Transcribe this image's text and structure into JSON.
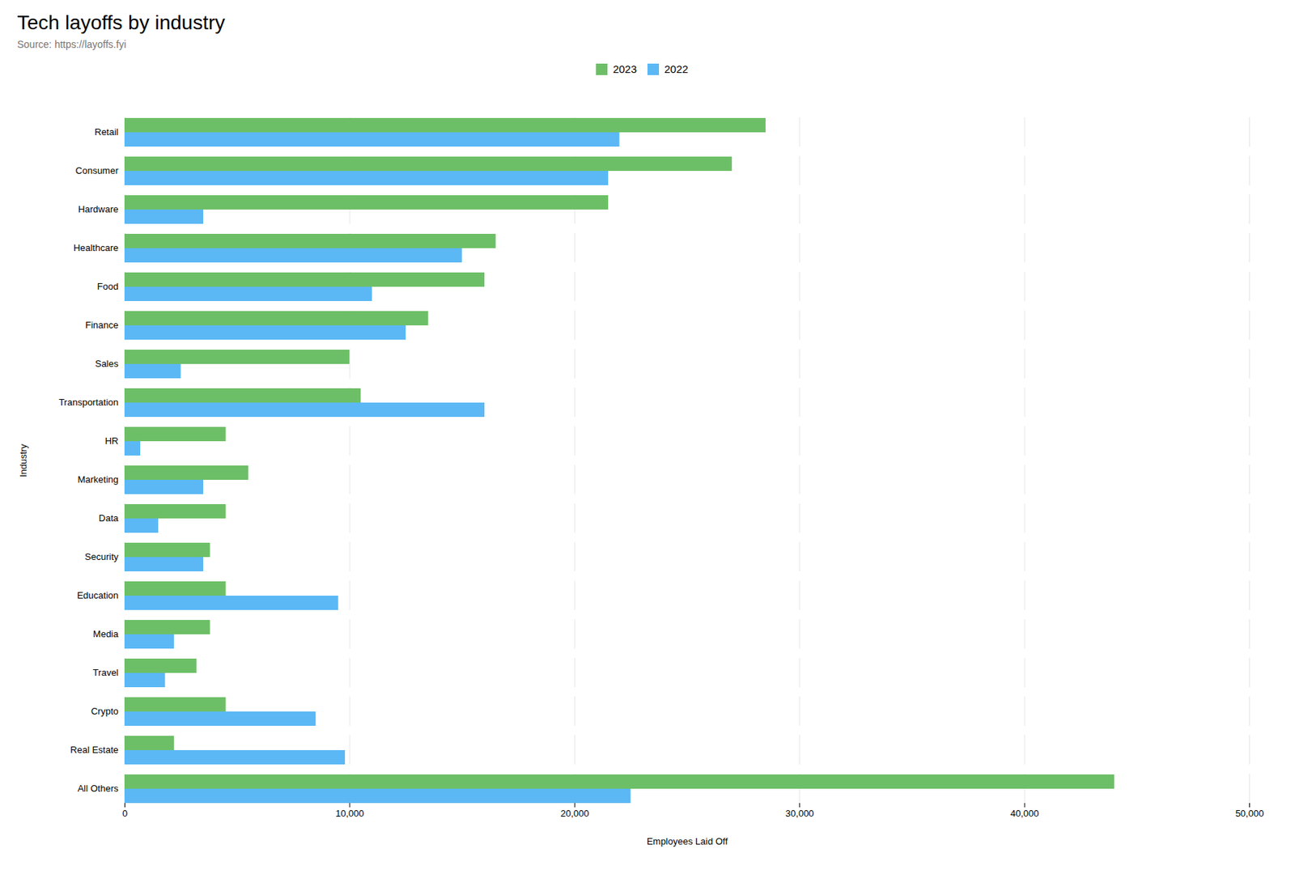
{
  "chart_data": {
    "type": "bar",
    "orientation": "horizontal",
    "title": "Tech layoffs by industry",
    "subtitle": "Source: https://layoffs.fyi",
    "xlabel": "Employees Laid Off",
    "ylabel": "Industry",
    "categories": [
      "Retail",
      "Consumer",
      "Hardware",
      "Healthcare",
      "Food",
      "Finance",
      "Sales",
      "Transportation",
      "HR",
      "Marketing",
      "Data",
      "Security",
      "Education",
      "Media",
      "Travel",
      "Crypto",
      "Real Estate",
      "All Others"
    ],
    "series": [
      {
        "name": "2023",
        "color": "#6dbf67",
        "values": [
          28500,
          27000,
          21500,
          16500,
          16000,
          13500,
          10000,
          10500,
          4500,
          5500,
          4500,
          3800,
          4500,
          3800,
          3200,
          4500,
          2200,
          44000
        ]
      },
      {
        "name": "2022",
        "color": "#5bb8f5",
        "values": [
          22000,
          21500,
          3500,
          15000,
          11000,
          12500,
          2500,
          16000,
          700,
          3500,
          1500,
          3500,
          9500,
          2200,
          1800,
          8500,
          9800,
          22500
        ]
      }
    ],
    "xlim": [
      0,
      50000
    ],
    "xticks": [
      0,
      {
        "value": 10000,
        "label": "10,000"
      },
      {
        "value": 20000,
        "label": "20,000"
      },
      {
        "value": 30000,
        "label": "30,000"
      },
      {
        "value": 40000,
        "label": "40,000"
      },
      {
        "value": 50000,
        "label": "50,000"
      }
    ],
    "grid": true,
    "legend": "upper center"
  }
}
